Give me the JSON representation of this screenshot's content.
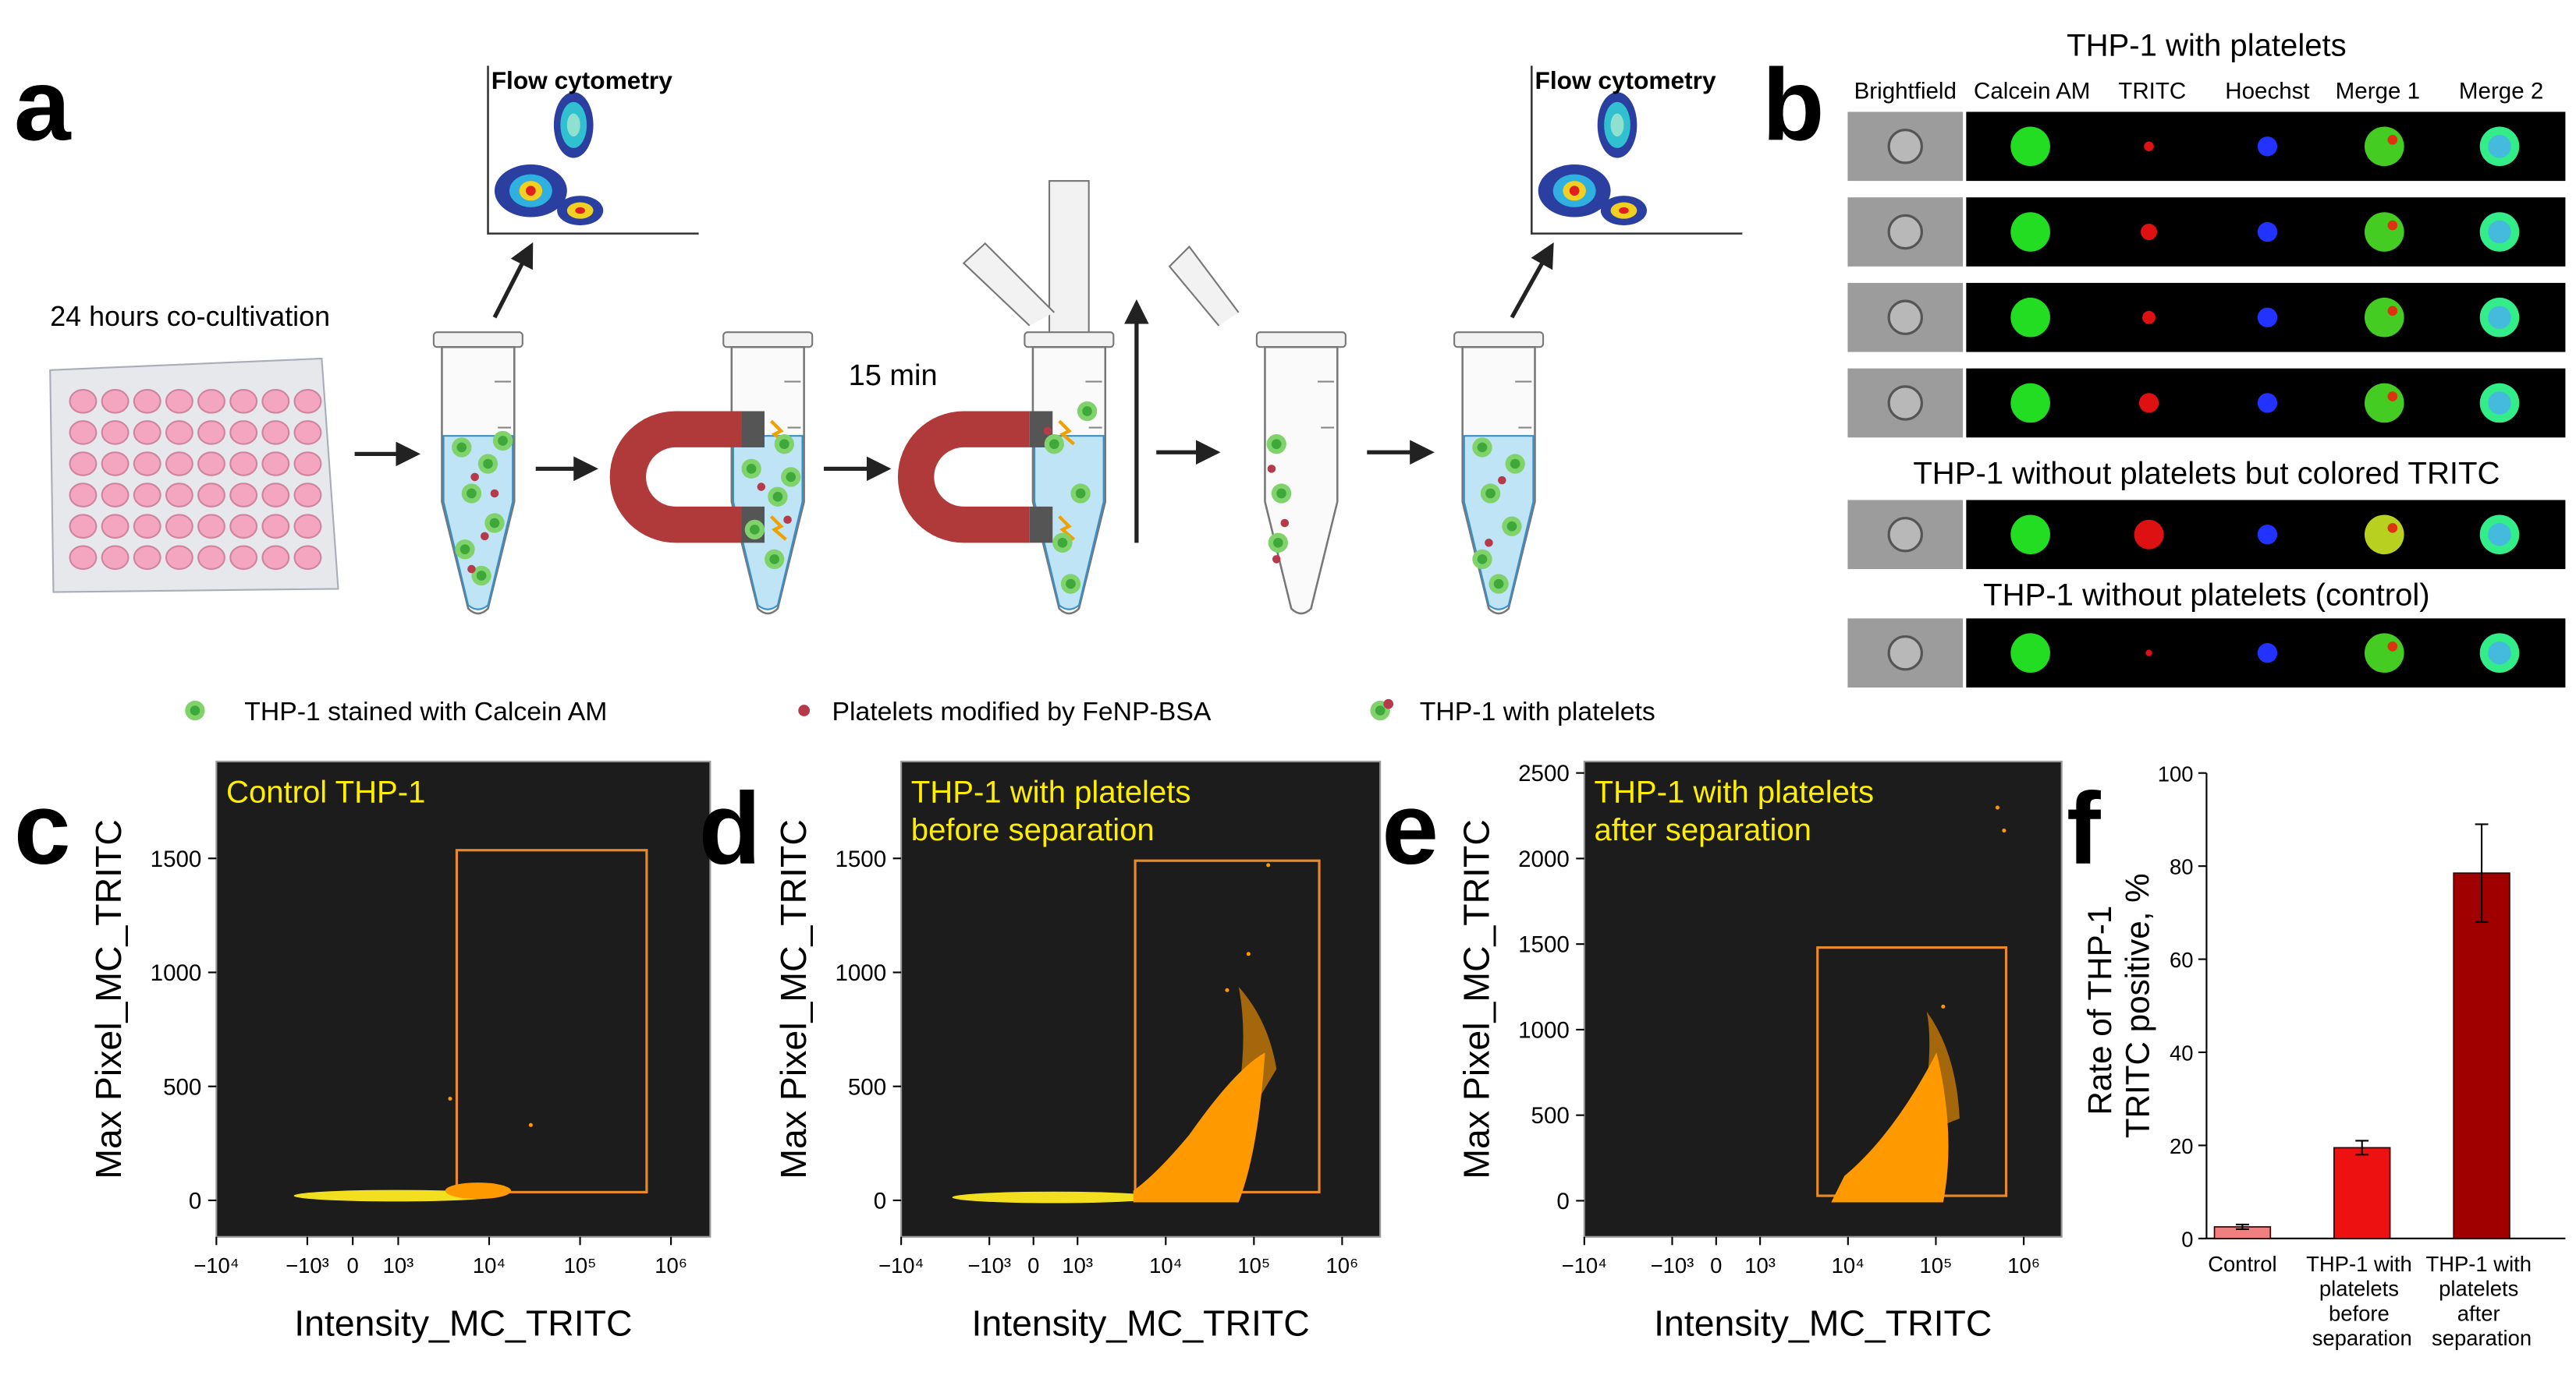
{
  "panel_a": {
    "label": "a",
    "flow_cytometry_1": "Flow cytometry",
    "flow_cytometry_2": "Flow cytometry",
    "cocultivation": "24 hours co-cultivation",
    "time": "15 min",
    "legend": [
      "THP-1 stained with Calcein AM",
      "Platelets modified by FeNP-BSA",
      "THP-1 with platelets"
    ]
  },
  "panel_b": {
    "label": "b",
    "title": "THP-1 with platelets",
    "columns": [
      "Brightfield",
      "Calcein AM",
      "TRITC",
      "Hoechst",
      "Merge 1",
      "Merge 2"
    ],
    "subtitle_1": "THP-1 without platelets but colored TRITC",
    "subtitle_2": "THP-1 without platelets (control)"
  },
  "chart_data": [
    {
      "type": "scatter",
      "label": "c",
      "annotation": "Control THP-1",
      "xlabel": "Intensity_MC_TRITC",
      "ylabel": "Max Pixel_MC_TRITC",
      "xscale": "symlog",
      "linthresh": 1000,
      "xlim": [
        -10000,
        2700000
      ],
      "ylim": [
        -160,
        1925
      ],
      "xticks": [
        {
          "value": -10000,
          "label": "−10⁴"
        },
        {
          "value": -1000,
          "label": "−10³"
        },
        0,
        {
          "value": 1000,
          "label": "10³"
        },
        {
          "value": 10000,
          "label": "10⁴"
        },
        {
          "value": 100000,
          "label": "10⁵"
        },
        {
          "value": 1000000,
          "label": "10⁶"
        }
      ],
      "yticks": [
        0,
        500,
        1000,
        1500
      ],
      "gate": {
        "x": [
          4400,
          540000
        ],
        "y": [
          36,
          1536
        ]
      },
      "gate_color": "#e8892a"
    },
    {
      "type": "scatter",
      "label": "d",
      "annotation": "THP-1 with platelets before separation",
      "xlabel": "Intensity_MC_TRITC",
      "ylabel": "Max Pixel_MC_TRITC",
      "xscale": "symlog",
      "linthresh": 1000,
      "xlim": [
        -10000,
        2700000
      ],
      "ylim": [
        -160,
        1925
      ],
      "xticks": [
        {
          "value": -10000,
          "label": "−10⁴"
        },
        {
          "value": -1000,
          "label": "−10³"
        },
        0,
        {
          "value": 1000,
          "label": "10³"
        },
        {
          "value": 10000,
          "label": "10⁴"
        },
        {
          "value": 100000,
          "label": "10⁵"
        },
        {
          "value": 1000000,
          "label": "10⁶"
        }
      ],
      "yticks": [
        0,
        500,
        1000,
        1500
      ],
      "gate": {
        "x": [
          4500,
          550000
        ],
        "y": [
          36,
          1490
        ]
      },
      "gate_color": "#e8892a"
    },
    {
      "type": "scatter",
      "label": "e",
      "annotation": "THP-1 with platelets after separation",
      "xlabel": "Intensity_MC_TRITC",
      "ylabel": "Max Pixel_MC_TRITC",
      "xscale": "symlog",
      "linthresh": 1000,
      "xlim": [
        -10000,
        2700000
      ],
      "ylim": [
        -211,
        2567
      ],
      "xticks": [
        {
          "value": -10000,
          "label": "−10⁴"
        },
        {
          "value": -1000,
          "label": "−10³"
        },
        0,
        {
          "value": 1000,
          "label": "10³"
        },
        {
          "value": 10000,
          "label": "10⁴"
        },
        {
          "value": 100000,
          "label": "10⁵"
        },
        {
          "value": 1000000,
          "label": "10⁶"
        }
      ],
      "yticks": [
        0,
        500,
        1000,
        1500,
        2000,
        2500
      ],
      "gate": {
        "x": [
          4500,
          630000
        ],
        "y": [
          29,
          1480
        ]
      },
      "gate_color": "#e8892a"
    },
    {
      "type": "bar",
      "label": "f",
      "ylabel": "Rate of THP-1 TRITC positive, %",
      "categories": [
        "Control",
        "THP-1 with platelets before separation",
        "THP-1 with platelets after separation"
      ],
      "values": [
        2.5,
        19.5,
        78.5
      ],
      "errors": [
        0.5,
        1.5,
        10.5
      ],
      "colors": [
        "#f08080",
        "#ee1111",
        "#a00000"
      ],
      "ylim": [
        0,
        100
      ],
      "yticks": [
        0,
        20,
        40,
        60,
        80,
        100
      ]
    }
  ]
}
